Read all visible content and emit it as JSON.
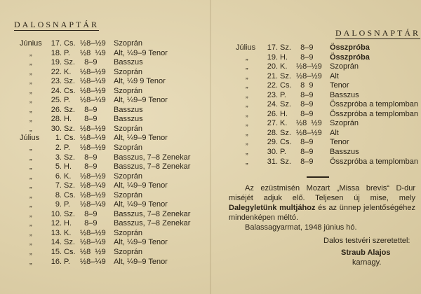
{
  "left": {
    "title": "DALOSNAPTÁR",
    "rows": [
      {
        "month": "Június",
        "day": "17.",
        "weekday": "Cs.",
        "time": "½8–½9",
        "part": "Szoprán"
      },
      {
        "month": "„",
        "day": "18.",
        "weekday": "P.",
        "time": "½8  ¼9",
        "part": "Alt, ¼9–9 Tenor"
      },
      {
        "month": "„",
        "day": "19.",
        "weekday": "Sz.",
        "time": "  8–9",
        "part": "Basszus"
      },
      {
        "month": "„",
        "day": "22.",
        "weekday": "K.",
        "time": "½8–½9",
        "part": "Szoprán"
      },
      {
        "month": "„",
        "day": "23.",
        "weekday": "Sz.",
        "time": "½8–¼9",
        "part": "Alt, ¼9  9 Tenor"
      },
      {
        "month": "„",
        "day": "24.",
        "weekday": "Cs.",
        "time": "½8–½9",
        "part": "Szoprán"
      },
      {
        "month": "„",
        "day": "25.",
        "weekday": "P.",
        "time": "½8–¼9",
        "part": "Alt, ¼9–9 Tenor"
      },
      {
        "month": "„",
        "day": "26.",
        "weekday": "Sz.",
        "time": "  8–9",
        "part": "Basszus"
      },
      {
        "month": "„",
        "day": "28.",
        "weekday": "H.",
        "time": "  8–9",
        "part": "Basszus"
      },
      {
        "month": "„",
        "day": "30.",
        "weekday": "Sz.",
        "time": "½8–½9",
        "part": "Szoprán"
      },
      {
        "month": "Július",
        "day": "1.",
        "weekday": "Cs.",
        "time": "½8–¼9",
        "part": "Alt, ¼9–9 Tenor"
      },
      {
        "month": "„",
        "day": "2.",
        "weekday": "P.",
        "time": "½8–½9",
        "part": "Szoprán"
      },
      {
        "month": "„",
        "day": "3.",
        "weekday": "Sz.",
        "time": "  8–9",
        "part": "Basszus, 7–8 Zenekar"
      },
      {
        "month": "„",
        "day": "5.",
        "weekday": "H.",
        "time": "  8–9",
        "part": "Basszus, 7–8 Zenekar"
      },
      {
        "month": "„",
        "day": "6.",
        "weekday": "K.",
        "time": "½8–½9",
        "part": "Szoprán"
      },
      {
        "month": "„",
        "day": "7.",
        "weekday": "Sz.",
        "time": "½8–¼9",
        "part": "Alt, ¼9–9 Tenor"
      },
      {
        "month": "„",
        "day": "8.",
        "weekday": "Cs.",
        "time": "½8–½9",
        "part": "Szoprán"
      },
      {
        "month": "„",
        "day": "9.",
        "weekday": "P.",
        "time": "½8–¼9",
        "part": "Alt, ¼9–9 Tenor"
      },
      {
        "month": "„",
        "day": "10.",
        "weekday": "Sz.",
        "time": "  8–9",
        "part": "Basszus, 7–8 Zenekar"
      },
      {
        "month": "„",
        "day": "12.",
        "weekday": "H.",
        "time": "  8–9",
        "part": "Basszus, 7–8 Zenekar"
      },
      {
        "month": "„",
        "day": "13.",
        "weekday": "K.",
        "time": "½8–½9",
        "part": "Szoprán"
      },
      {
        "month": "„",
        "day": "14.",
        "weekday": "Sz.",
        "time": "½8–¼9",
        "part": "Alt, ¼9–9 Tenor"
      },
      {
        "month": "„",
        "day": "15.",
        "weekday": "Cs.",
        "time": "½8  ½9",
        "part": "Szoprán"
      },
      {
        "month": "„",
        "day": "16.",
        "weekday": "P.",
        "time": "½8–¼9",
        "part": "Alt, ¼9–9 Tenor"
      }
    ]
  },
  "right": {
    "title": "DALOSNAPTÁR",
    "rows": [
      {
        "month": "Július",
        "day": "17.",
        "weekday": "Sz.",
        "time": "  8–9",
        "part": "Összpróba",
        "bold": true
      },
      {
        "month": "„",
        "day": "19.",
        "weekday": "H.",
        "time": "  8–9",
        "part": "Összpróba",
        "bold": true
      },
      {
        "month": "„",
        "day": "20.",
        "weekday": "K.",
        "time": "½8–½9",
        "part": "Szoprán"
      },
      {
        "month": "„",
        "day": "21.",
        "weekday": "Sz.",
        "time": "½8–½9",
        "part": "Alt"
      },
      {
        "month": "„",
        "day": "22.",
        "weekday": "Cs.",
        "time": "  8  9",
        "part": "Tenor"
      },
      {
        "month": "„",
        "day": "23.",
        "weekday": "P.",
        "time": "  8–9",
        "part": "Basszus"
      },
      {
        "month": "„",
        "day": "24.",
        "weekday": "Sz.",
        "time": "  8–9",
        "part": "Összpróba a templomban"
      },
      {
        "month": "„",
        "day": "26.",
        "weekday": "H.",
        "time": "  8–9",
        "part": "Összpróba a templomban"
      },
      {
        "month": "„",
        "day": "27.",
        "weekday": "K.",
        "time": "½8  ½9",
        "part": "Szoprán"
      },
      {
        "month": "„",
        "day": "28.",
        "weekday": "Sz.",
        "time": "½8–½9",
        "part": "Alt"
      },
      {
        "month": "„",
        "day": "29.",
        "weekday": "Cs.",
        "time": "  8–9",
        "part": "Tenor"
      },
      {
        "month": "„",
        "day": "30.",
        "weekday": "P.",
        "time": "  8–9",
        "part": "Basszus"
      },
      {
        "month": "„",
        "day": "31.",
        "weekday": "Sz.",
        "time": "  8–9",
        "part": "Összpróba a templomban"
      }
    ],
    "note": {
      "p1_a": "Az ezüstmisén Mozart „Missa brevis“ D-dur miséjét adjuk elő. Teljesen új mise, mely ",
      "p1_bold": "Dalegyletünk multjához",
      "p1_b": " és az ünnep jelentőségéhez mindenképen méltó.",
      "place_date": "Balassagyarmat, 1948 június hó."
    },
    "closing": "Dalos testvéri szeretettel:",
    "signature_name": "Straub Alajos",
    "signature_title": "karnagy."
  }
}
